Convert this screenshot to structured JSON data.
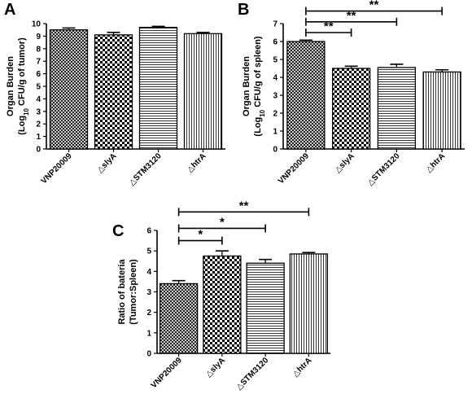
{
  "chart_data": [
    {
      "panel": "A",
      "type": "bar",
      "categories": [
        "VNP20009",
        "△slyA",
        "△STM3120",
        "△htrA"
      ],
      "values": [
        9.5,
        9.1,
        9.7,
        9.2
      ],
      "errors": [
        0.15,
        0.2,
        0.08,
        0.1
      ],
      "ylabel_lines": [
        "Organ Burden",
        "(Log",
        "10",
        " CFU/g of tumor)"
      ],
      "ylim": [
        0,
        10
      ],
      "yticks": [
        0,
        1,
        2,
        3,
        4,
        5,
        6,
        7,
        8,
        9,
        10
      ],
      "patterns": [
        "crosshatch",
        "checker",
        "hlines",
        "vlines"
      ],
      "significance": []
    },
    {
      "panel": "B",
      "type": "bar",
      "categories": [
        "VNP20009",
        "△slyA",
        "△STM3120",
        "△htrA"
      ],
      "values": [
        6.0,
        4.5,
        4.55,
        4.3
      ],
      "errors": [
        0.08,
        0.12,
        0.18,
        0.12
      ],
      "ylabel_lines": [
        "Organ Burden",
        "(Log",
        "10",
        " CFU/g of spleen)"
      ],
      "ylim": [
        0,
        7
      ],
      "yticks": [
        0,
        1,
        2,
        3,
        4,
        5,
        6,
        7
      ],
      "patterns": [
        "crosshatch",
        "checker",
        "hlines",
        "vlines"
      ],
      "significance": [
        {
          "from": 0,
          "to": 1,
          "label": "**",
          "level": 6.5
        },
        {
          "from": 0,
          "to": 2,
          "label": "**",
          "level": 7.1
        },
        {
          "from": 0,
          "to": 3,
          "label": "**",
          "level": 7.7
        }
      ]
    },
    {
      "panel": "C",
      "type": "bar",
      "categories": [
        "VNP20009",
        "△slyA",
        "△STM3120",
        "△htrA"
      ],
      "values": [
        3.4,
        4.75,
        4.4,
        4.85
      ],
      "errors": [
        0.15,
        0.25,
        0.18,
        0.07
      ],
      "ylabel_lines": [
        "Ratio of bateria",
        "(Tumor:Spleen)"
      ],
      "ylim": [
        0,
        6
      ],
      "yticks": [
        0,
        1,
        2,
        3,
        4,
        5,
        6
      ],
      "patterns": [
        "crosshatch",
        "checker",
        "hlines",
        "vlines"
      ],
      "significance": [
        {
          "from": 0,
          "to": 1,
          "label": "*",
          "level": 5.5
        },
        {
          "from": 0,
          "to": 2,
          "label": "*",
          "level": 6.1
        },
        {
          "from": 0,
          "to": 3,
          "label": "**",
          "level": 6.9
        }
      ]
    }
  ]
}
